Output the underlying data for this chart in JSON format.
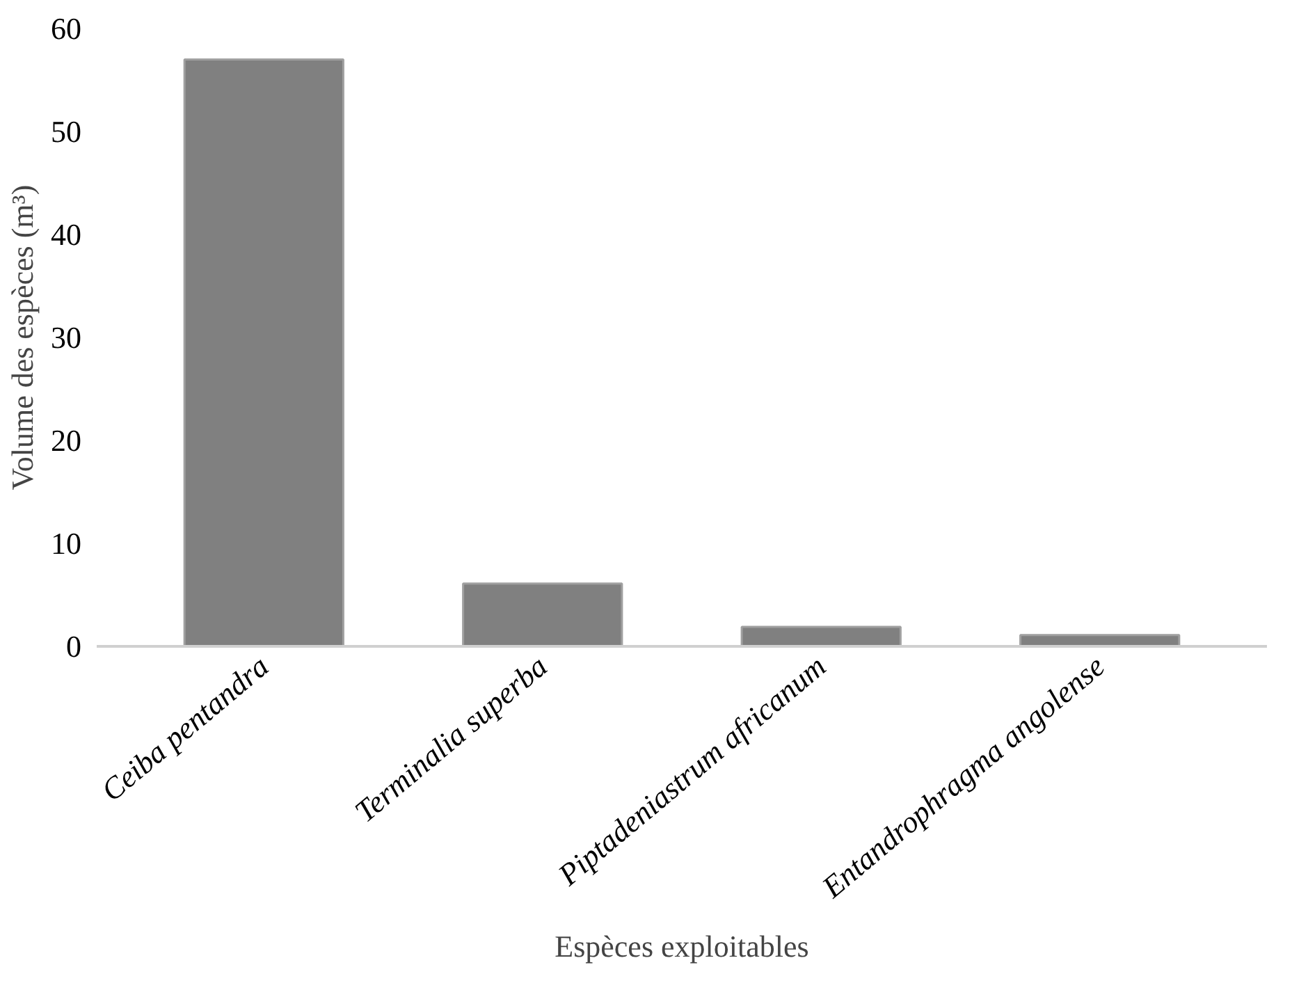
{
  "chart_data": {
    "type": "bar",
    "xlabel": "Espèces exploitables",
    "ylabel": "Volume des espèces (m³)",
    "categories": [
      "Ceiba pentandra",
      "Terminalia superba",
      "Piptadeniastrum africanum",
      "Entandrophragma angolense"
    ],
    "values": [
      57,
      6.1,
      1.9,
      1.1
    ],
    "color": "#808080",
    "ylim": [
      0,
      60
    ],
    "yticks": [
      0,
      10,
      20,
      30,
      40,
      50,
      60
    ],
    "grid": false
  }
}
